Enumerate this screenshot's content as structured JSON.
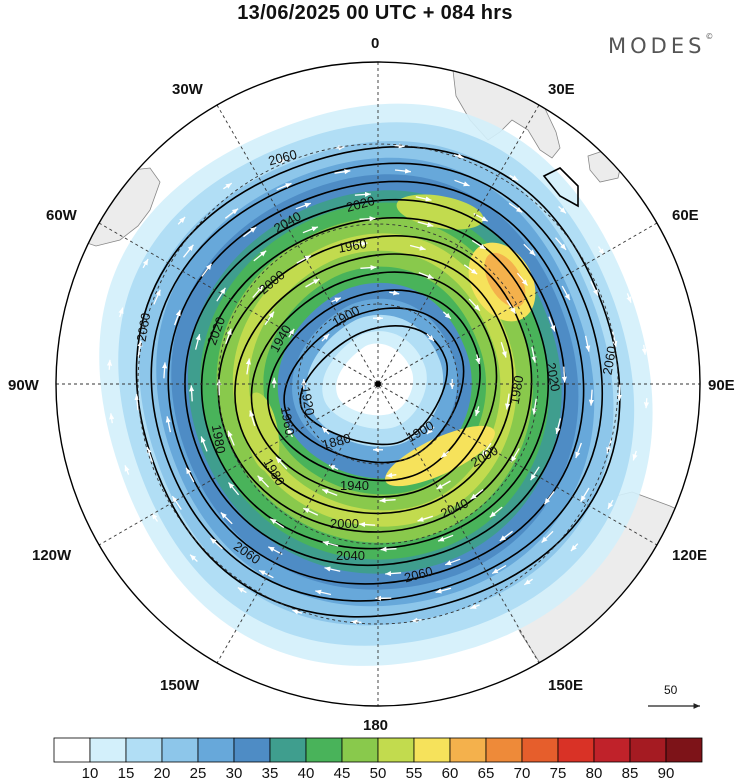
{
  "title": "13/06/2025  00 UTC  + 084 hrs",
  "logo": "MODES",
  "logo_mark": "©",
  "longitude_labels": {
    "n": "0",
    "s": "180",
    "w30": "30W",
    "e30": "30E",
    "w60": "60W",
    "e60": "60E",
    "w90": "90W",
    "e90": "90E",
    "w120": "120W",
    "e120": "120E",
    "w150": "150W",
    "e150": "150E"
  },
  "contour_labels": [
    "2060",
    "2040",
    "2020",
    "2000",
    "1980",
    "1960",
    "1940",
    "1920",
    "1900",
    "1880"
  ],
  "contour_label_texts": {
    "l2060a": "2060",
    "l2060b": "2060",
    "l2060c": "2060",
    "l2060d": "2060",
    "l2060e": "2060",
    "l2040a": "2040",
    "l2040b": "2040",
    "l2040c": "2040",
    "l2020a": "2020",
    "l2020b": "2020",
    "l2020c": "2020",
    "l2000a": "2000",
    "l2000b": "2000",
    "l2000c": "2000",
    "l1980a": "1980",
    "l1980b": "1980",
    "l1980c": "1980",
    "l1960a": "1960",
    "l1960b": "1960",
    "l1940a": "1940",
    "l1940b": "1940",
    "l1920a": "1920",
    "l1900a": "1900",
    "l1900b": "1900",
    "l1880a": "1880"
  },
  "wind_scale": {
    "label": "50"
  },
  "colorbar": {
    "ticks": [
      "10",
      "15",
      "20",
      "25",
      "30",
      "35",
      "40",
      "45",
      "50",
      "55",
      "60",
      "65",
      "70",
      "75",
      "80",
      "85",
      "90"
    ],
    "colors": [
      "#ffffff",
      "#d3f0fb",
      "#b1def5",
      "#8dc6ea",
      "#67a8da",
      "#4e8cc5",
      "#3f9e8e",
      "#49b35a",
      "#89c94c",
      "#c2db4e",
      "#f6e25b",
      "#f4b14c",
      "#ee8a39",
      "#e65e2c",
      "#d93226",
      "#c0222a",
      "#a51b22",
      "#7d1318"
    ]
  }
}
